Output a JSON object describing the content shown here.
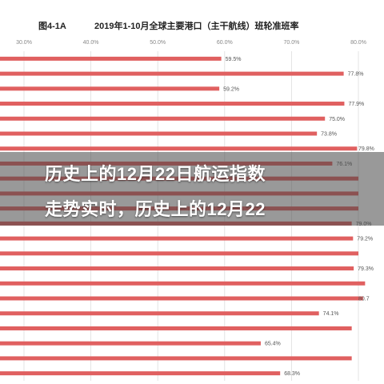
{
  "header": {
    "figure_label": "图4-1A",
    "title": "2019年1-10月全球主要港口（主干航线）班轮准班率"
  },
  "overlay": {
    "line1": "历史上的12月22日航运指数",
    "line2": "走势实时，历史上的12月22"
  },
  "colors": {
    "bar": "#e06060",
    "bar_dark": "#c84848",
    "grid": "#dddddd",
    "overlay": "#555555"
  },
  "chart_data": {
    "type": "bar",
    "orientation": "horizontal",
    "title": "2019年1-10月全球主要港口（主干航线）班轮准班率",
    "xlim": [
      30,
      90
    ],
    "x_ticks": [
      "30.0%",
      "40.0%",
      "50.0%",
      "60.0%",
      "70.0%",
      "80.0%"
    ],
    "values": [
      59.5,
      77.8,
      59.2,
      77.9,
      75.0,
      73.8,
      79.8,
      76.1,
      80.0,
      80.0,
      80.0,
      79.0,
      79.2,
      80.0,
      79.3,
      81.0,
      80.7,
      74.1,
      79.0,
      65.4,
      79.0,
      68.3
    ],
    "labels": [
      "59.5%",
      "77.8%",
      "59.2%",
      "77.9%",
      "75.0%",
      "73.8%",
      "79.8%",
      "76.1%",
      "",
      "",
      "",
      "79.0%",
      "79.2%",
      "",
      "79.3%",
      "",
      "80.7",
      "74.1%",
      "",
      "65.4%",
      "",
      "68.3%"
    ],
    "grid": true
  }
}
